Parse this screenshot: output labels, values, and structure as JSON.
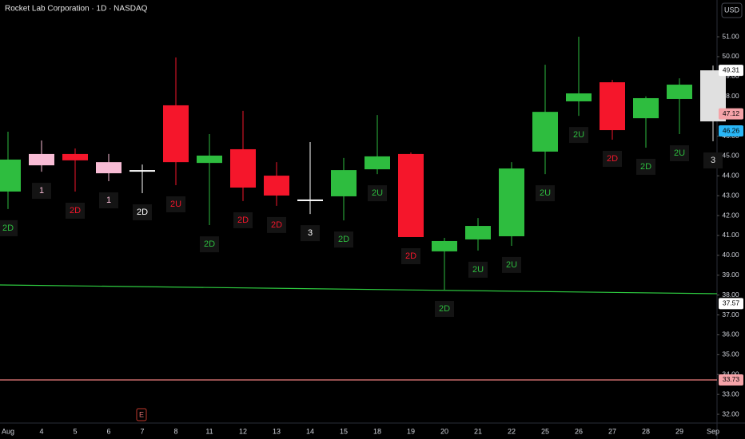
{
  "chart_data": {
    "type": "candlestick",
    "title": "Rocket Lab Corporation · 1D · NASDAQ",
    "currency_button": "USD",
    "earnings_marker": "E",
    "categories": [
      "Aug",
      "4",
      "5",
      "6",
      "7",
      "8",
      "11",
      "12",
      "13",
      "14",
      "15",
      "18",
      "19",
      "20",
      "21",
      "22",
      "25",
      "26",
      "27",
      "28",
      "29",
      "Sep"
    ],
    "open": [
      43.21,
      45.1,
      45.1,
      44.69,
      44.29,
      47.55,
      44.65,
      45.34,
      44.01,
      42.81,
      42.97,
      44.33,
      45.1,
      40.2,
      40.8,
      40.96,
      45.22,
      47.75,
      48.71,
      46.9,
      47.87,
      49.31
    ],
    "high": [
      46.22,
      45.78,
      45.38,
      45.1,
      44.57,
      49.96,
      46.1,
      47.27,
      44.69,
      45.7,
      44.9,
      47.06,
      45.18,
      40.88,
      41.88,
      44.69,
      49.59,
      51.0,
      48.83,
      48.0,
      48.91,
      49.55
    ],
    "low": [
      42.33,
      44.21,
      43.21,
      43.73,
      43.13,
      43.53,
      41.52,
      42.73,
      42.49,
      42.08,
      41.76,
      44.09,
      40.92,
      38.27,
      40.24,
      40.48,
      44.09,
      47.02,
      45.82,
      45.42,
      46.1,
      45.74
    ],
    "close": [
      44.82,
      44.53,
      44.78,
      44.13,
      44.29,
      44.69,
      45.02,
      43.41,
      43.01,
      42.81,
      44.29,
      44.98,
      40.92,
      40.72,
      41.48,
      44.37,
      47.22,
      48.15,
      46.3,
      47.91,
      48.59,
      46.74
    ],
    "colors": [
      "#2ebd3f",
      "#f8bcd5",
      "#f5162b",
      "#f8bcd5",
      "#ffffff",
      "#f5162b",
      "#2ebd3f",
      "#f5162b",
      "#f5162b",
      "#ffffff",
      "#2ebd3f",
      "#2ebd3f",
      "#f5162b",
      "#2ebd3f",
      "#2ebd3f",
      "#2ebd3f",
      "#2ebd3f",
      "#2ebd3f",
      "#f5162b",
      "#2ebd3f",
      "#2ebd3f",
      "#e0e0e0"
    ],
    "labels": [
      "2D",
      "1",
      "2D",
      "1",
      "2D",
      "2U",
      "2D",
      "2D",
      "2D",
      "3",
      "2D",
      "2U",
      "2D",
      "2D",
      "2U",
      "2U",
      "2U",
      "2U",
      "2D",
      "2D",
      "2U",
      "3"
    ],
    "ylim": [
      31.56,
      52.85
    ],
    "yticks": [
      {
        "value": 32,
        "label": "32.00"
      },
      {
        "value": 33,
        "label": "33.00"
      },
      {
        "value": 34,
        "label": "34.00"
      },
      {
        "value": 35,
        "label": "35.00"
      },
      {
        "value": 36,
        "label": "36.00"
      },
      {
        "value": 37,
        "label": "37.00"
      },
      {
        "value": 38,
        "label": "38.00"
      },
      {
        "value": 39,
        "label": "39.00"
      },
      {
        "value": 40,
        "label": "40.00"
      },
      {
        "value": 41,
        "label": "41.00"
      },
      {
        "value": 42,
        "label": "42.00"
      },
      {
        "value": 43,
        "label": "43.00"
      },
      {
        "value": 44,
        "label": "44.00"
      },
      {
        "value": 45,
        "label": "45.00"
      },
      {
        "value": 46,
        "label": "46.00"
      },
      {
        "value": 47,
        "label": "47.00"
      },
      {
        "value": 48,
        "label": "48.00"
      },
      {
        "value": 49,
        "label": "49.00"
      },
      {
        "value": 50,
        "label": "50.00"
      },
      {
        "value": 51,
        "label": "51.00"
      }
    ],
    "lines": [
      {
        "color": "#2ecc40",
        "values": [
          38.51,
          38.07
        ]
      },
      {
        "color": "#f08080",
        "values": [
          33.73,
          33.73
        ]
      }
    ],
    "price_labels": [
      {
        "value": 49.31,
        "color": "#ffffff",
        "text_color": "#000000"
      },
      {
        "value": 47.12,
        "color": "#f5a3a8",
        "text_color": "#000000"
      },
      {
        "value": 46.26,
        "color": "#29b6f6",
        "text_color": "#000000"
      },
      {
        "value": 37.57,
        "color": "#ffffff",
        "text_color": "#000000"
      },
      {
        "value": 33.73,
        "color": "#f5a3a8",
        "text_color": "#000000"
      }
    ]
  }
}
